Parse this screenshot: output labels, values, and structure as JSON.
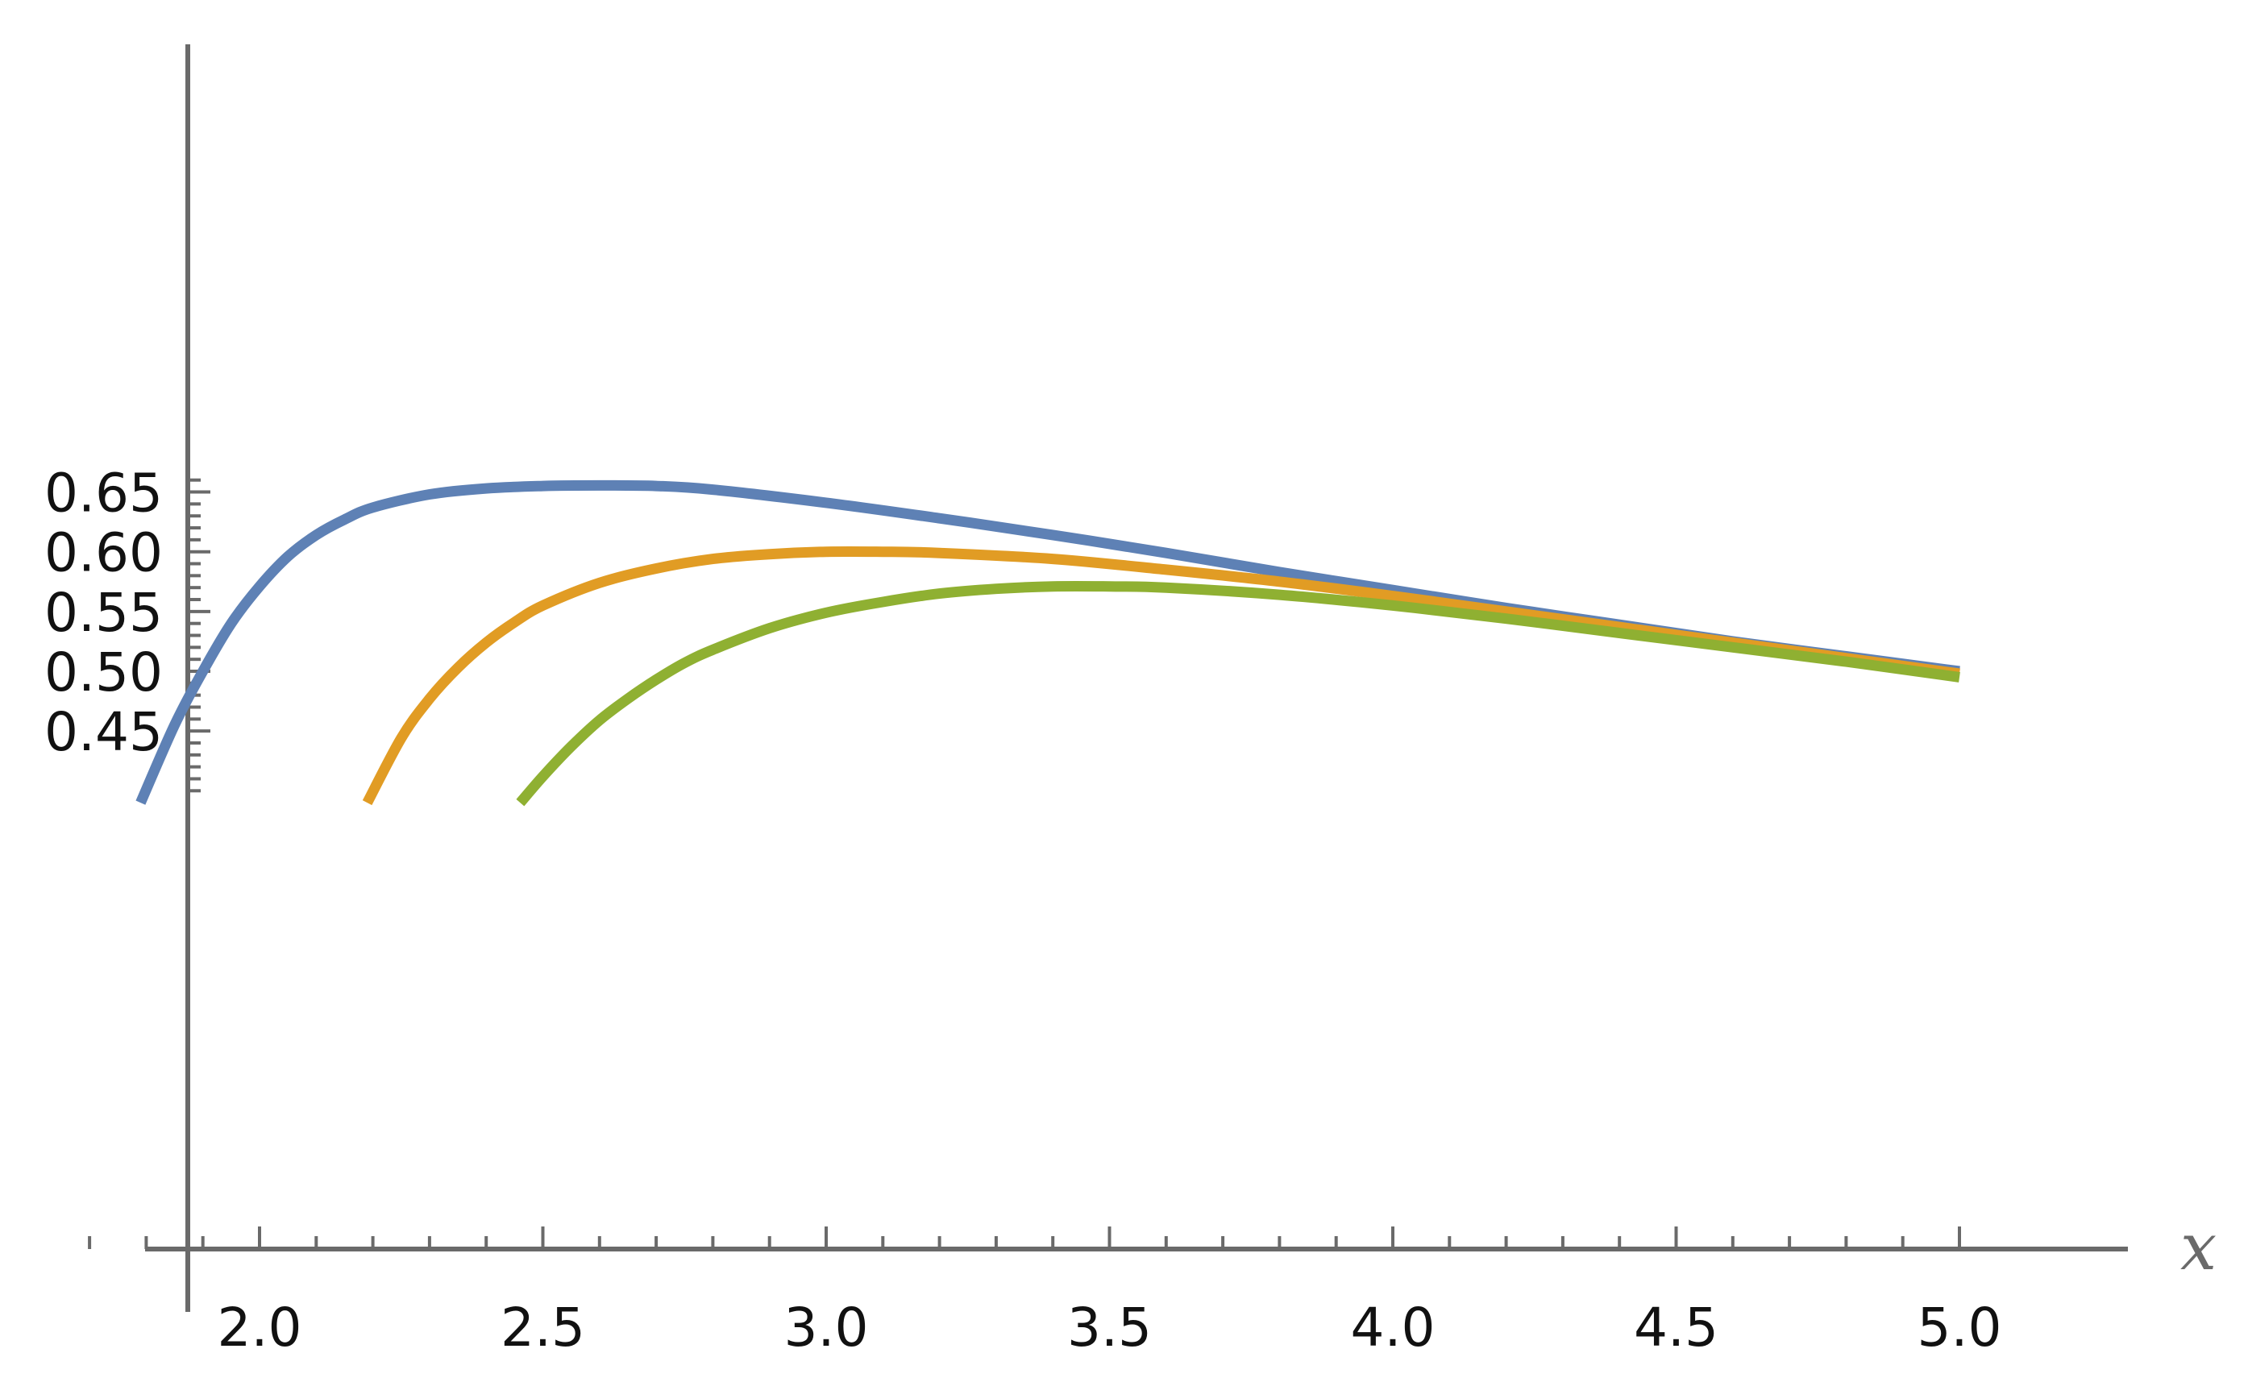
{
  "chart_data": {
    "type": "line",
    "title": "",
    "xlabel": "x",
    "ylabel": "",
    "xlim": [
      1.68,
      5.0
    ],
    "ylim": [
      0.39,
      0.665
    ],
    "x_axis_crossing_y": 0.39,
    "x_ticks": [
      {
        "value": 2.0,
        "label": "2.0"
      },
      {
        "value": 2.5,
        "label": "2.5"
      },
      {
        "value": 3.0,
        "label": "3.0"
      },
      {
        "value": 3.5,
        "label": "3.5"
      },
      {
        "value": 4.0,
        "label": "4.0"
      },
      {
        "value": 4.5,
        "label": "4.5"
      },
      {
        "value": 5.0,
        "label": "5.0"
      }
    ],
    "y_ticks": [
      {
        "value": 0.45,
        "label": "0.45"
      },
      {
        "value": 0.5,
        "label": "0.50"
      },
      {
        "value": 0.55,
        "label": "0.55"
      },
      {
        "value": 0.6,
        "label": "0.60"
      },
      {
        "value": 0.65,
        "label": "0.65"
      }
    ],
    "x_minor_step": 0.1,
    "y_minor_step": 0.01,
    "grid": false,
    "legend": "none",
    "series": [
      {
        "color": "#5e81b5",
        "points": [
          [
            1.79,
            0.39
          ],
          [
            1.85,
            0.455
          ],
          [
            1.9,
            0.5
          ],
          [
            1.95,
            0.54
          ],
          [
            2.0,
            0.571
          ],
          [
            2.05,
            0.596
          ],
          [
            2.1,
            0.614
          ],
          [
            2.15,
            0.627
          ],
          [
            2.2,
            0.637
          ],
          [
            2.3,
            0.648
          ],
          [
            2.4,
            0.653
          ],
          [
            2.5,
            0.655
          ],
          [
            2.6,
            0.6555
          ],
          [
            2.7,
            0.655
          ],
          [
            2.8,
            0.652
          ],
          [
            3.0,
            0.641
          ],
          [
            3.2,
            0.628
          ],
          [
            3.4,
            0.614
          ],
          [
            3.6,
            0.599
          ],
          [
            3.8,
            0.583
          ],
          [
            4.0,
            0.568
          ],
          [
            4.2,
            0.553
          ],
          [
            4.4,
            0.539
          ],
          [
            4.6,
            0.525
          ],
          [
            4.8,
            0.5125
          ],
          [
            5.0,
            0.5
          ]
        ]
      },
      {
        "color": "#e19c24",
        "points": [
          [
            2.19,
            0.39
          ],
          [
            2.25,
            0.444
          ],
          [
            2.3,
            0.477
          ],
          [
            2.35,
            0.503
          ],
          [
            2.4,
            0.524
          ],
          [
            2.45,
            0.541
          ],
          [
            2.5,
            0.555
          ],
          [
            2.6,
            0.574
          ],
          [
            2.7,
            0.586
          ],
          [
            2.8,
            0.594
          ],
          [
            2.9,
            0.598
          ],
          [
            3.0,
            0.6
          ],
          [
            3.1,
            0.6
          ],
          [
            3.2,
            0.599
          ],
          [
            3.4,
            0.594
          ],
          [
            3.6,
            0.585
          ],
          [
            3.8,
            0.575
          ],
          [
            4.0,
            0.563
          ],
          [
            4.2,
            0.55
          ],
          [
            4.4,
            0.537
          ],
          [
            4.6,
            0.524
          ],
          [
            4.8,
            0.511
          ],
          [
            5.0,
            0.498
          ]
        ]
      },
      {
        "color": "#8fb032",
        "points": [
          [
            2.46,
            0.39
          ],
          [
            2.5,
            0.412
          ],
          [
            2.55,
            0.437
          ],
          [
            2.6,
            0.459
          ],
          [
            2.65,
            0.477
          ],
          [
            2.7,
            0.493
          ],
          [
            2.75,
            0.507
          ],
          [
            2.8,
            0.518
          ],
          [
            2.9,
            0.536
          ],
          [
            3.0,
            0.549
          ],
          [
            3.1,
            0.558
          ],
          [
            3.2,
            0.565
          ],
          [
            3.3,
            0.569
          ],
          [
            3.4,
            0.571
          ],
          [
            3.5,
            0.571
          ],
          [
            3.6,
            0.57
          ],
          [
            3.8,
            0.564
          ],
          [
            4.0,
            0.555
          ],
          [
            4.2,
            0.544
          ],
          [
            4.4,
            0.532
          ],
          [
            4.6,
            0.52
          ],
          [
            4.8,
            0.508
          ],
          [
            5.0,
            0.495
          ]
        ]
      }
    ]
  }
}
